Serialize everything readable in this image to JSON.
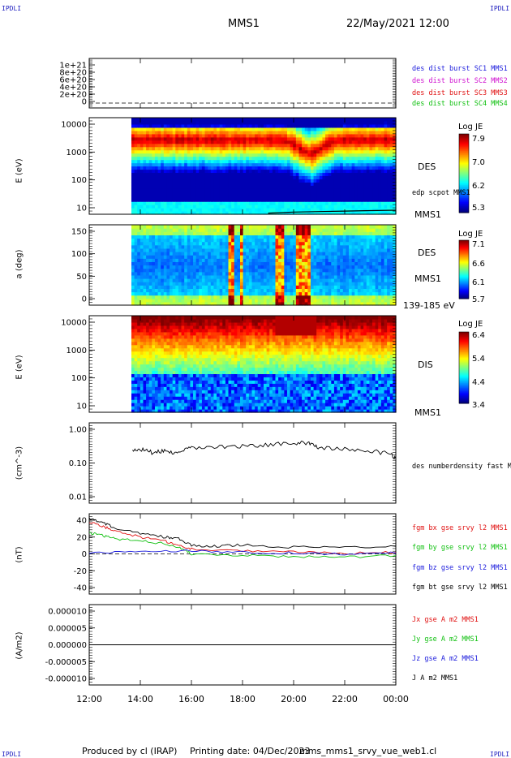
{
  "header": {
    "corner_label": "IPDLI",
    "spacecraft": "MMS1",
    "date": "22/May/2021 12:00"
  },
  "footer": {
    "produced_by": "Produced by cl (IRAP)",
    "printing_date": "Printing date: 04/Dec/2023",
    "file": "mms_mms1_srvy_vue_web1.cl"
  },
  "time_axis": {
    "ticks": [
      "12:00",
      "14:00",
      "16:00",
      "18:00",
      "20:00",
      "22:00",
      "00:00"
    ],
    "hours": [
      12,
      14,
      16,
      18,
      20,
      22,
      24
    ]
  },
  "colors": {
    "blue": "#1a1adc",
    "magenta": "#d010d0",
    "red": "#e01010",
    "green": "#10c010",
    "black": "#000000"
  },
  "chart_data": [
    {
      "id": "panel1",
      "type": "line",
      "yticks": [
        "1e+21",
        "8e+20",
        "6e+20",
        "4e+20",
        "2e+20",
        "0"
      ],
      "ylim": [
        0,
        1.05e+21
      ],
      "series": [
        {
          "name": "des dist burst SC1 MMS1",
          "color": "#1a1adc"
        },
        {
          "name": "des dist burst SC2 MMS2",
          "color": "#d010d0"
        },
        {
          "name": "des dist burst SC3 MMS3",
          "color": "#e01010"
        },
        {
          "name": "des dist burst SC4 MMS4",
          "color": "#10c010"
        }
      ]
    },
    {
      "id": "panel2",
      "type": "heatmap",
      "ylabel": "E (eV)",
      "yticks": [
        "10000",
        "1000",
        "100",
        "10"
      ],
      "ylog": [
        10,
        30000
      ],
      "data_start_hour": 13.65,
      "colorbar": {
        "title": "Log JE",
        "ticks": [
          "7.9",
          "7.0",
          "6.2",
          "5.3"
        ],
        "range": [
          5.3,
          7.9
        ]
      },
      "instrument": "DES",
      "spacecraft": "MMS1",
      "overlay_label": "edp scpot MMS1",
      "overlay": {
        "color": "#000000",
        "x": [
          19.0,
          20.0,
          21.0,
          22.0,
          23.0,
          24.0
        ],
        "y": [
          11.0,
          12.0,
          12.5,
          13.0,
          13.5,
          14.0
        ]
      }
    },
    {
      "id": "panel3",
      "type": "heatmap",
      "ylabel": "a (deg)",
      "yticks": [
        "150",
        "100",
        "50",
        "0"
      ],
      "ylim": [
        0,
        180
      ],
      "data_start_hour": 13.65,
      "colorbar": {
        "title": "Log JE",
        "ticks": [
          "7.1",
          "6.6",
          "6.1",
          "5.7"
        ],
        "range": [
          5.7,
          7.1
        ]
      },
      "instrument": "DES",
      "spacecraft": "MMS1",
      "energy_range": "139-185 eV"
    },
    {
      "id": "panel4",
      "type": "heatmap",
      "ylabel": "E (eV)",
      "yticks": [
        "10000",
        "1000",
        "100",
        "10"
      ],
      "ylog": [
        10,
        25000
      ],
      "data_start_hour": 13.65,
      "colorbar": {
        "title": "Log JE",
        "ticks": [
          "6.4",
          "5.4",
          "4.4",
          "3.4"
        ],
        "range": [
          3.4,
          6.4
        ]
      },
      "instrument": "DIS",
      "spacecraft": "MMS1"
    },
    {
      "id": "panel5",
      "type": "line",
      "ylabel": "(cm^-3)",
      "yticks": [
        "1.00",
        "0.10",
        "0.01"
      ],
      "ylog": [
        0.01,
        1.0
      ],
      "series": [
        {
          "name": "des numberdensity fast M",
          "color": "#000000",
          "x": [
            13.7,
            14.0,
            14.5,
            15.0,
            15.5,
            16.0,
            17.0,
            18.0,
            19.0,
            20.0,
            20.6,
            21.0,
            22.0,
            23.0,
            23.8,
            24.0
          ],
          "y": [
            0.2,
            0.22,
            0.18,
            0.2,
            0.17,
            0.24,
            0.25,
            0.26,
            0.29,
            0.3,
            0.33,
            0.24,
            0.22,
            0.2,
            0.17,
            0.13
          ]
        }
      ]
    },
    {
      "id": "panel6",
      "type": "line",
      "ylabel": "(nT)",
      "yticks": [
        "40",
        "20",
        "0",
        "-20",
        "-40"
      ],
      "ylim": [
        -48,
        48
      ],
      "series": [
        {
          "name": "fgm bx gse srvy l2 MMS1",
          "color": "#e01010",
          "x": [
            12.0,
            12.5,
            13.0,
            14.0,
            15.0,
            15.5,
            16.0,
            18.0,
            20.0,
            22.0,
            24.0
          ],
          "y": [
            38,
            33,
            28,
            20,
            15,
            10,
            6,
            4,
            2,
            1,
            2
          ]
        },
        {
          "name": "fgm by gse srvy l2 MMS1",
          "color": "#10c010",
          "x": [
            12.0,
            12.5,
            13.0,
            14.0,
            15.0,
            15.5,
            16.0,
            18.0,
            20.0,
            22.0,
            24.0
          ],
          "y": [
            25,
            22,
            18,
            16,
            12,
            8,
            0,
            -2,
            -3,
            -4,
            -2
          ]
        },
        {
          "name": "fgm bz gse srvy l2 MMS1",
          "color": "#1a1adc",
          "x": [
            12.0,
            14.0,
            16.0,
            18.0,
            20.0,
            22.0,
            24.0
          ],
          "y": [
            1,
            3,
            4,
            2,
            1,
            0,
            1
          ]
        },
        {
          "name": "fgm bt gse srvy l2 MMS1",
          "color": "#000000",
          "x": [
            12.0,
            12.5,
            13.0,
            14.0,
            15.0,
            15.5,
            16.0,
            17.0,
            18.0,
            20.0,
            22.0,
            24.0
          ],
          "y": [
            42,
            38,
            31,
            24,
            20,
            18,
            10,
            9,
            11,
            8,
            8,
            9
          ]
        }
      ]
    },
    {
      "id": "panel7",
      "type": "line",
      "ylabel": "(A/m2)",
      "yticks": [
        "0.000010",
        "0.000005",
        "0.000000",
        "-0.000005",
        "-0.000010"
      ],
      "ylim": [
        -1e-05,
        1e-05
      ],
      "series": [
        {
          "name": "Jx gse A m2 MMS1",
          "color": "#e01010"
        },
        {
          "name": "Jy gse A m2 MMS1",
          "color": "#10c010"
        },
        {
          "name": "Jz gse A m2 MMS1",
          "color": "#1a1adc"
        },
        {
          "name": "J A m2 MMS1",
          "color": "#000000",
          "x": [
            12.0,
            24.0
          ],
          "y": [
            0,
            0
          ]
        }
      ]
    }
  ]
}
